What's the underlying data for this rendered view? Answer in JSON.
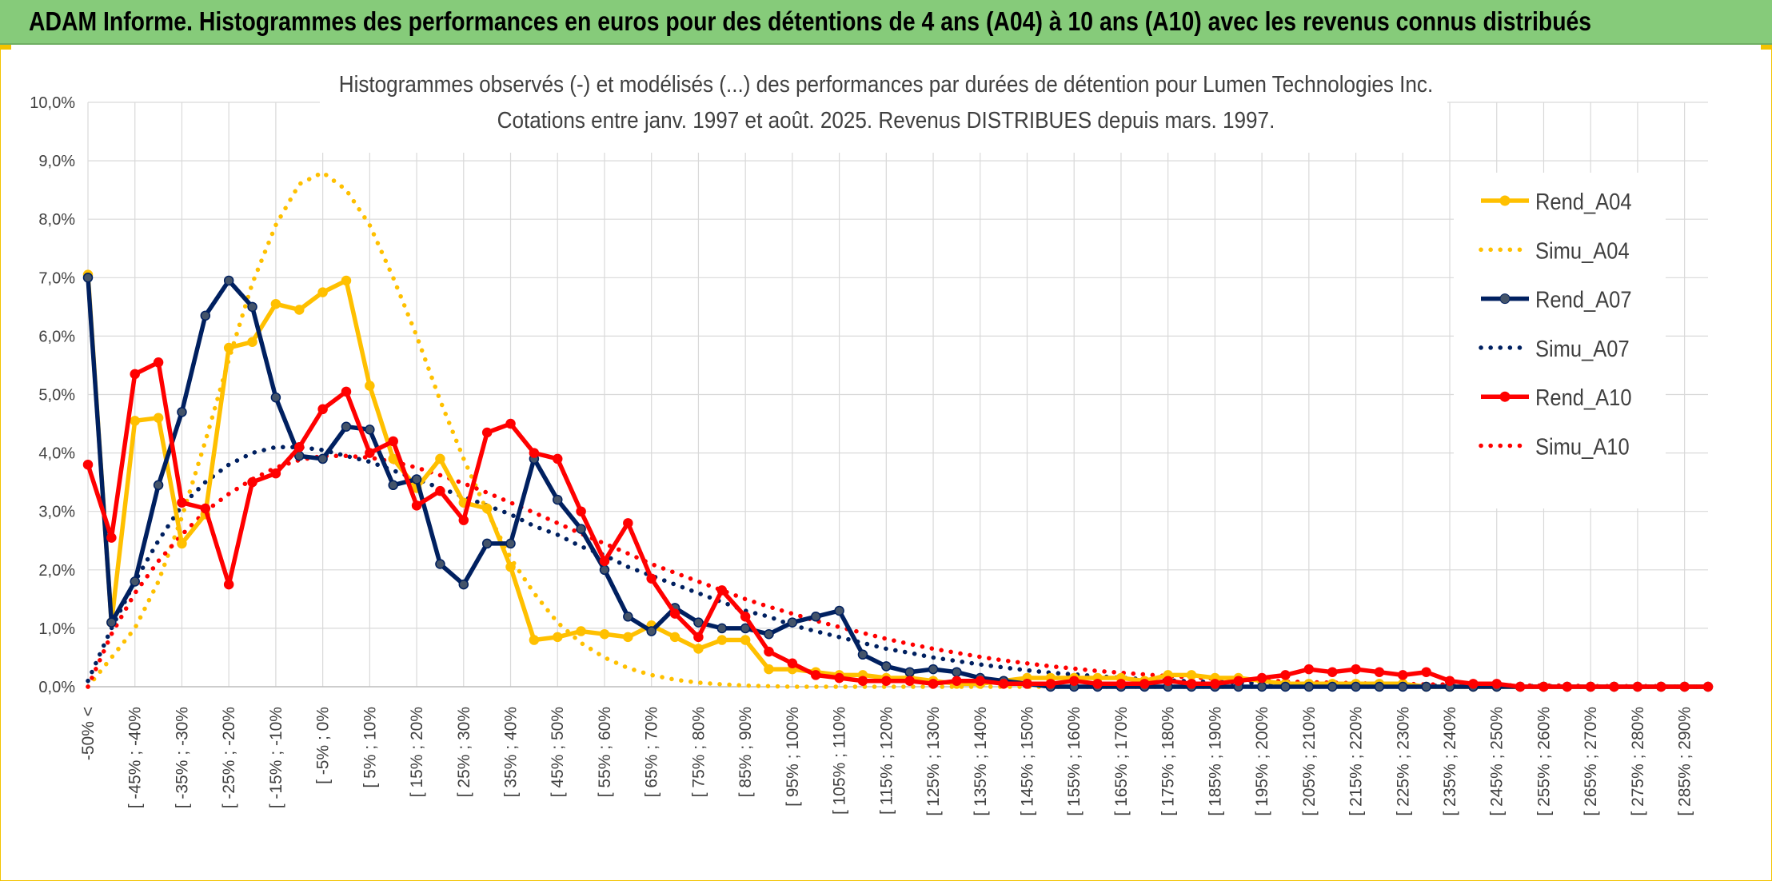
{
  "page": {
    "title": "ADAM Informe. Histogrammes des performances en euros pour des détentions de 4 ans (A04) à 10 ans (A10) avec les revenus connus distribués"
  },
  "chart_data": {
    "type": "line",
    "title": "Histogrammes observés (-) et modélisés (...) des performances par durées de détention pour Lumen Technologies Inc.",
    "subtitle": "Cotations entre janv. 1997 et août. 2025. Revenus DISTRIBUES depuis mars. 1997.",
    "xlabel": "",
    "ylabel": "",
    "ylim": [
      0,
      10
    ],
    "y_ticks": [
      "0,0%",
      "1,0%",
      "2,0%",
      "3,0%",
      "4,0%",
      "5,0%",
      "6,0%",
      "7,0%",
      "8,0%",
      "9,0%",
      "10,0%"
    ],
    "x_ticks": [
      "-50% <",
      "[ -45% ; -40%",
      "[ -35% ; -30%",
      "[ -25% ; -20%",
      "[ -15% ; -10%",
      "[ -5% ; 0%",
      "[ 5% ; 10%",
      "[ 15% ; 20%",
      "[ 25% ; 30%",
      "[ 35% ; 40%",
      "[ 45% ; 50%",
      "[ 55% ; 60%",
      "[ 65% ; 70%",
      "[ 75% ; 80%",
      "[ 85% ; 90%",
      "[ 95% ; 100%",
      "[ 105% ; 110%",
      "[ 115% ; 120%",
      "[ 125% ; 130%",
      "[ 135% ; 140%",
      "[ 145% ; 150%",
      "[ 155% ; 160%",
      "[ 165% ; 170%",
      "[ 175% ; 180%",
      "[ 185% ; 190%",
      "[ 195% ; 200%",
      "[ 205% ; 210%",
      "[ 215% ; 220%",
      "[ 225% ; 230%",
      "[ 235% ; 240%",
      "[ 245% ; 250%",
      "[ 255% ; 260%",
      "[ 265% ; 270%",
      "[ 275% ; 280%",
      "[ 285% ; 290%"
    ],
    "x_count": 70,
    "grid": true,
    "legend_position": "right",
    "series": [
      {
        "name": "Rend_A04",
        "style": "solid",
        "color": "#ffc000",
        "values": [
          7.05,
          1.1,
          4.55,
          4.6,
          2.45,
          2.95,
          5.8,
          5.9,
          6.55,
          6.45,
          6.75,
          6.95,
          5.15,
          3.9,
          3.4,
          3.9,
          3.15,
          3.05,
          2.05,
          0.8,
          0.85,
          0.95,
          0.9,
          0.85,
          1.05,
          0.85,
          0.65,
          0.8,
          0.8,
          0.3,
          0.3,
          0.25,
          0.2,
          0.2,
          0.15,
          0.15,
          0.1,
          0.05,
          0.05,
          0.1,
          0.15,
          0.15,
          0.15,
          0.15,
          0.15,
          0.1,
          0.2,
          0.2,
          0.15,
          0.15,
          0.1,
          0.05,
          0.05,
          0.05,
          0.05,
          0.05,
          0.05,
          0.0,
          0.0,
          0.0,
          0.0,
          0.0,
          0.0,
          0.0,
          0.0,
          0.0,
          0.0,
          0.0,
          0.0,
          0.0
        ]
      },
      {
        "name": "Simu_A04",
        "style": "dotted",
        "color": "#ffc000",
        "values": [
          0.0,
          0.5,
          1.0,
          1.8,
          2.9,
          4.2,
          5.6,
          6.9,
          7.9,
          8.6,
          8.8,
          8.5,
          7.9,
          7.0,
          6.0,
          4.9,
          3.9,
          3.0,
          2.2,
          1.6,
          1.1,
          0.75,
          0.5,
          0.32,
          0.2,
          0.12,
          0.07,
          0.04,
          0.02,
          0.01,
          0.0,
          0.0,
          0.0,
          0.0,
          0.0,
          0.0,
          0.0,
          0.0,
          0.0,
          0.0,
          0.0,
          0.0,
          0.0,
          0.0,
          0.0,
          0.0,
          0.0,
          0.0,
          0.0,
          0.0,
          0.0,
          0.0,
          0.0,
          0.0,
          0.0,
          0.0,
          0.0,
          0.0,
          0.0,
          0.0,
          0.0,
          0.0,
          0.0,
          0.0,
          0.0,
          0.0,
          0.0,
          0.0,
          0.0,
          0.0
        ]
      },
      {
        "name": "Rend_A07",
        "style": "solid",
        "color": "#002060",
        "values": [
          7.0,
          1.1,
          1.8,
          3.45,
          4.7,
          6.35,
          6.95,
          6.5,
          4.95,
          3.95,
          3.9,
          4.45,
          4.4,
          3.45,
          3.55,
          2.1,
          1.75,
          2.45,
          2.45,
          3.9,
          3.2,
          2.7,
          2.0,
          1.2,
          0.95,
          1.35,
          1.1,
          1.0,
          1.0,
          0.9,
          1.1,
          1.2,
          1.3,
          0.55,
          0.35,
          0.25,
          0.3,
          0.25,
          0.15,
          0.1,
          0.05,
          0.0,
          0.0,
          0.0,
          0.0,
          0.0,
          0.0,
          0.0,
          0.0,
          0.0,
          0.0,
          0.0,
          0.0,
          0.0,
          0.0,
          0.0,
          0.0,
          0.0,
          0.0,
          0.0,
          0.0,
          0.0,
          0.0,
          0.0,
          0.0,
          0.0,
          0.0,
          0.0,
          0.0,
          0.0
        ]
      },
      {
        "name": "Simu_A07",
        "style": "dotted",
        "color": "#002060",
        "values": [
          0.1,
          1.0,
          1.8,
          2.5,
          3.1,
          3.5,
          3.8,
          4.0,
          4.1,
          4.1,
          4.05,
          3.95,
          3.85,
          3.7,
          3.55,
          3.4,
          3.25,
          3.1,
          2.95,
          2.75,
          2.6,
          2.4,
          2.25,
          2.05,
          1.9,
          1.75,
          1.6,
          1.45,
          1.3,
          1.2,
          1.05,
          0.95,
          0.85,
          0.75,
          0.65,
          0.58,
          0.5,
          0.44,
          0.38,
          0.33,
          0.28,
          0.24,
          0.21,
          0.18,
          0.15,
          0.13,
          0.11,
          0.09,
          0.08,
          0.07,
          0.06,
          0.05,
          0.04,
          0.03,
          0.03,
          0.02,
          0.02,
          0.02,
          0.01,
          0.01,
          0.01,
          0.01,
          0.01,
          0.0,
          0.0,
          0.0,
          0.0,
          0.0,
          0.0,
          0.0
        ]
      },
      {
        "name": "Rend_A10",
        "style": "solid",
        "color": "#ff0000",
        "values": [
          3.8,
          2.55,
          5.35,
          5.55,
          3.15,
          3.05,
          1.75,
          3.5,
          3.65,
          4.1,
          4.75,
          5.05,
          4.0,
          4.2,
          3.1,
          3.35,
          2.85,
          4.35,
          4.5,
          4.0,
          3.9,
          3.0,
          2.15,
          2.8,
          1.85,
          1.25,
          0.85,
          1.65,
          1.2,
          0.6,
          0.4,
          0.2,
          0.15,
          0.1,
          0.1,
          0.1,
          0.05,
          0.1,
          0.1,
          0.05,
          0.05,
          0.05,
          0.1,
          0.05,
          0.05,
          0.05,
          0.1,
          0.05,
          0.05,
          0.1,
          0.15,
          0.2,
          0.3,
          0.25,
          0.3,
          0.25,
          0.2,
          0.25,
          0.1,
          0.05,
          0.05,
          0.0,
          0.0,
          0.0,
          0.0,
          0.0,
          0.0,
          0.0,
          0.0,
          0.0
        ]
      },
      {
        "name": "Simu_A10",
        "style": "dotted",
        "color": "#ff0000",
        "values": [
          0.0,
          0.9,
          1.6,
          2.15,
          2.6,
          3.0,
          3.3,
          3.55,
          3.75,
          3.88,
          3.95,
          3.95,
          3.92,
          3.85,
          3.75,
          3.62,
          3.48,
          3.32,
          3.15,
          2.98,
          2.8,
          2.62,
          2.45,
          2.28,
          2.1,
          1.95,
          1.8,
          1.65,
          1.5,
          1.37,
          1.25,
          1.13,
          1.02,
          0.92,
          0.82,
          0.73,
          0.65,
          0.58,
          0.51,
          0.45,
          0.4,
          0.35,
          0.31,
          0.27,
          0.24,
          0.21,
          0.18,
          0.16,
          0.14,
          0.12,
          0.11,
          0.09,
          0.08,
          0.07,
          0.06,
          0.05,
          0.05,
          0.04,
          0.04,
          0.03,
          0.03,
          0.02,
          0.02,
          0.02,
          0.01,
          0.01,
          0.01,
          0.01,
          0.0,
          0.0
        ]
      }
    ]
  }
}
